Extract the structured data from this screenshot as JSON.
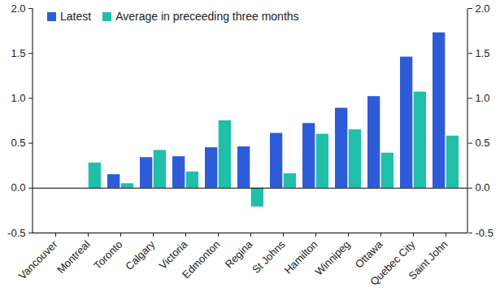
{
  "chart_data": {
    "type": "bar",
    "categories": [
      "Vancouver",
      "Montreal",
      "Toronto",
      "Calgary",
      "Victoria",
      "Edmonton",
      "Regina",
      "St Johns",
      "Hamilton",
      "Winnipeg",
      "Ottawa",
      "Quebec City",
      "Saint John"
    ],
    "series": [
      {
        "name": "Latest",
        "color": "#2e5bd8",
        "values": [
          0,
          0,
          0.15,
          0.34,
          0.35,
          0.45,
          0.46,
          0.61,
          0.72,
          0.89,
          1.02,
          1.46,
          1.73
        ]
      },
      {
        "name": "Average in preceeding three months",
        "color": "#1fbfa8",
        "values": [
          0,
          0.28,
          0.05,
          0.42,
          0.18,
          0.75,
          -0.21,
          0.16,
          0.6,
          0.65,
          0.39,
          1.07,
          0.58
        ]
      }
    ],
    "ylim": [
      -0.5,
      2.0
    ],
    "yticks": [
      {
        "value": -0.5,
        "label": "-0.5"
      },
      {
        "value": 0,
        "label": "0.0"
      },
      {
        "value": 0.5,
        "label": "0.5"
      },
      {
        "value": 1,
        "label": "1.0"
      },
      {
        "value": 1.5,
        "label": "1.5"
      },
      {
        "value": 2,
        "label": "2.0"
      }
    ],
    "grid": false,
    "legend": "top-left"
  }
}
